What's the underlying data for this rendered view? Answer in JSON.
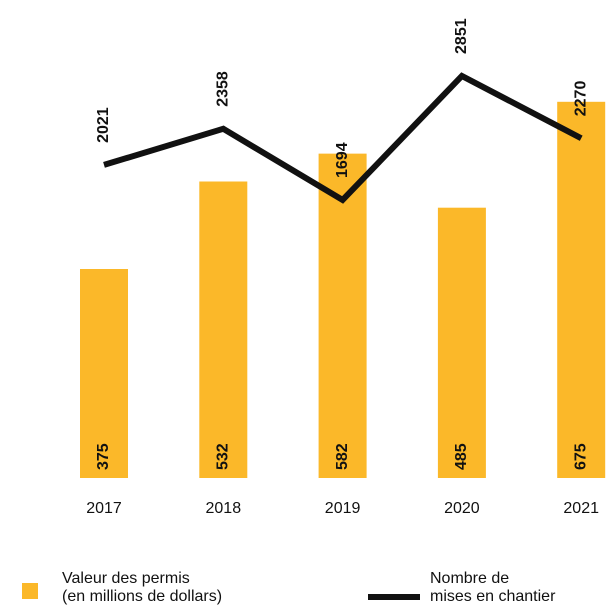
{
  "chart_data": {
    "type": "bar_line",
    "categories": [
      "2017",
      "2018",
      "2019",
      "2020",
      "2021"
    ],
    "series": [
      {
        "name": "Valeur des permis\n(en millions de dollars)",
        "type": "bar",
        "color": "#fbb829",
        "values": [
          375,
          532,
          582,
          485,
          675
        ]
      },
      {
        "name": "Nombre de\nmises en chantier",
        "type": "line",
        "axis": "y2",
        "color": "#111111",
        "values": [
          2021,
          2358,
          1694,
          2851,
          2270
        ]
      }
    ],
    "ylim": [
      0,
      750
    ],
    "y2lim": [
      -900,
      3000
    ],
    "grid": false
  }
}
